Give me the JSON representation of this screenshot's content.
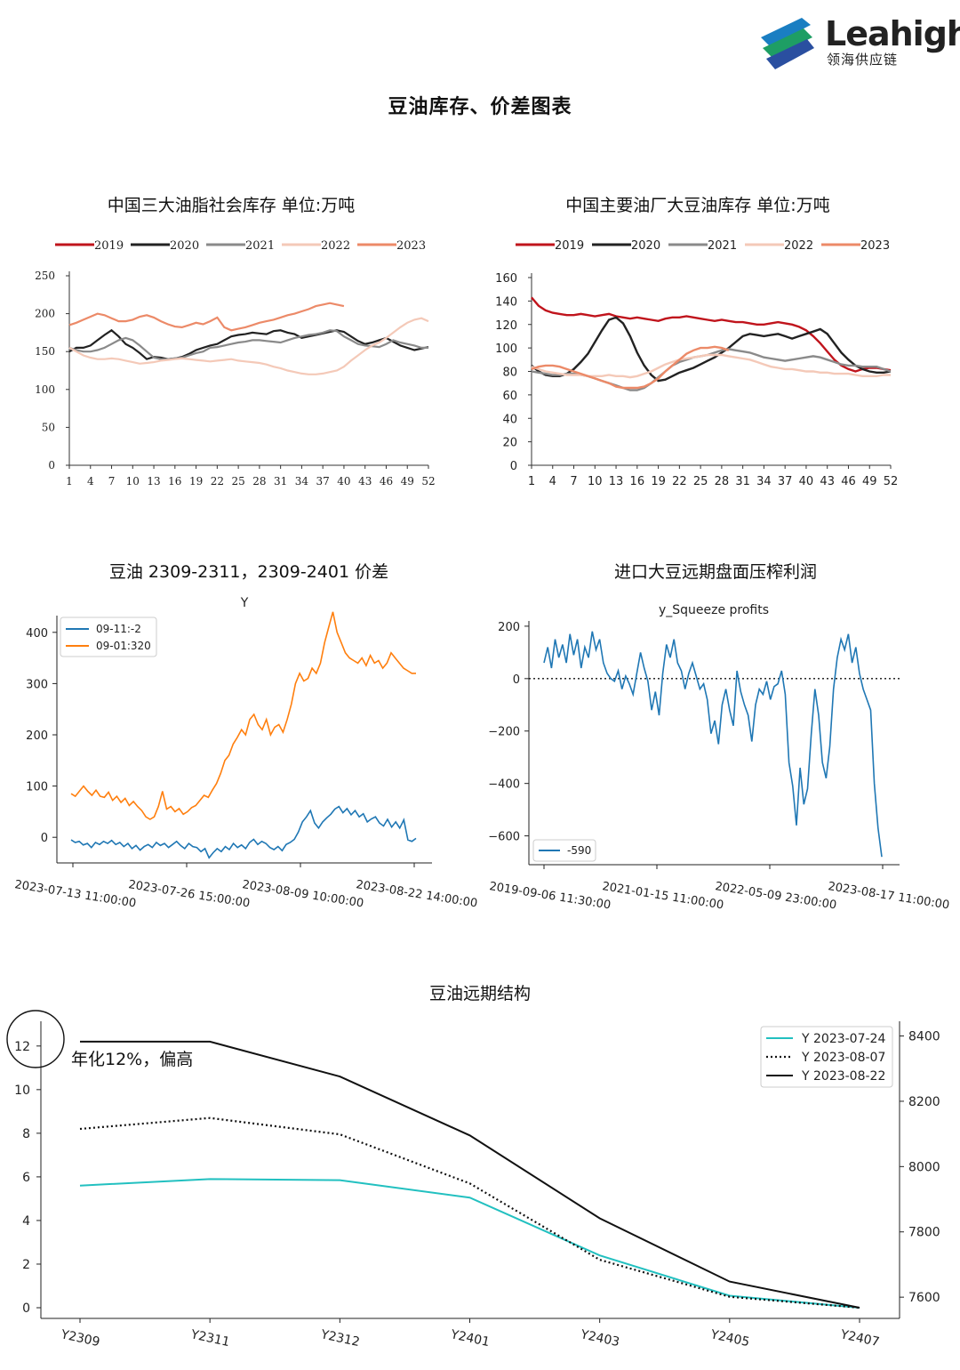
{
  "header": {
    "brand": "Leahigh",
    "brand_cn": "领海供应链",
    "page_title": "豆油库存、价差图表"
  },
  "colors": {
    "y2019": "#c0141c",
    "y2020": "#222222",
    "y2021": "#8a8a8a",
    "y2022": "#f4c9b8",
    "y2023": "#ec8a68",
    "mpl_blue": "#1f77b4",
    "mpl_orange": "#ff7f0e",
    "teal": "#22c0c0"
  },
  "chart_data": [
    {
      "id": "c1",
      "type": "line",
      "title": "中国三大油脂社会库存  单位:万吨",
      "legend_position": "top",
      "x_ticks": [
        "1",
        "4",
        "7",
        "10",
        "13",
        "16",
        "19",
        "22",
        "25",
        "28",
        "31",
        "34",
        "37",
        "40",
        "43",
        "46",
        "49",
        "52"
      ],
      "xlim": [
        1,
        52
      ],
      "y_ticks": [
        "0",
        "50",
        "100",
        "150",
        "200",
        "250"
      ],
      "ylim": [
        0,
        250
      ],
      "series": [
        {
          "name": "2019",
          "values": []
        },
        {
          "name": "2020",
          "values": [
            150,
            155,
            155,
            158,
            165,
            172,
            178,
            170,
            160,
            155,
            148,
            140,
            143,
            142,
            140,
            141,
            143,
            147,
            152,
            155,
            158,
            160,
            165,
            170,
            172,
            173,
            175,
            174,
            173,
            177,
            178,
            175,
            173,
            168,
            170,
            172,
            174,
            176,
            178,
            176,
            170,
            164,
            160,
            162,
            165,
            168,
            163,
            158,
            155,
            152,
            154,
            156
          ]
        },
        {
          "name": "2021",
          "values": [
            155,
            152,
            150,
            150,
            152,
            155,
            160,
            165,
            168,
            165,
            158,
            150,
            142,
            140,
            140,
            141,
            142,
            145,
            148,
            150,
            155,
            156,
            158,
            160,
            162,
            163,
            165,
            165,
            164,
            163,
            162,
            165,
            168,
            170,
            172,
            173,
            175,
            178,
            177,
            170,
            165,
            160,
            158,
            157,
            156,
            160,
            165,
            162,
            160,
            158,
            155,
            155
          ]
        },
        {
          "name": "2022",
          "values": [
            155,
            150,
            145,
            142,
            140,
            140,
            141,
            140,
            138,
            136,
            134,
            135,
            136,
            138,
            139,
            140,
            141,
            140,
            139,
            138,
            137,
            138,
            139,
            140,
            138,
            137,
            136,
            135,
            133,
            130,
            128,
            125,
            123,
            121,
            120,
            120,
            121,
            123,
            125,
            130,
            138,
            145,
            152,
            158,
            162,
            168,
            175,
            182,
            188,
            192,
            194,
            190
          ]
        },
        {
          "name": "2023",
          "values": [
            185,
            188,
            192,
            196,
            200,
            198,
            194,
            190,
            190,
            192,
            196,
            198,
            195,
            190,
            186,
            183,
            182,
            185,
            188,
            186,
            190,
            195,
            182,
            178,
            180,
            182,
            185,
            188,
            190,
            192,
            195,
            198,
            200,
            203,
            206,
            210,
            212,
            214,
            212,
            210
          ]
        }
      ]
    },
    {
      "id": "c2",
      "type": "line",
      "title": "中国主要油厂大豆油库存  单位:万吨",
      "legend_position": "top",
      "x_ticks": [
        "1",
        "4",
        "7",
        "10",
        "13",
        "16",
        "19",
        "22",
        "25",
        "28",
        "31",
        "34",
        "37",
        "40",
        "43",
        "46",
        "49",
        "52"
      ],
      "xlim": [
        1,
        52
      ],
      "y_ticks": [
        "0",
        "20",
        "40",
        "60",
        "80",
        "100",
        "120",
        "140",
        "160"
      ],
      "ylim": [
        0,
        160
      ],
      "series": [
        {
          "name": "2019",
          "values": [
            143,
            136,
            132,
            130,
            129,
            128,
            128,
            129,
            128,
            127,
            128,
            129,
            127,
            126,
            125,
            126,
            125,
            124,
            123,
            125,
            126,
            126,
            127,
            126,
            125,
            124,
            123,
            124,
            123,
            122,
            122,
            121,
            120,
            120,
            121,
            122,
            121,
            120,
            118,
            115,
            110,
            104,
            97,
            90,
            85,
            82,
            80,
            82,
            83,
            83,
            82,
            81
          ]
        },
        {
          "name": "2020",
          "values": [
            85,
            80,
            77,
            76,
            76,
            78,
            82,
            88,
            95,
            105,
            115,
            124,
            126,
            121,
            110,
            96,
            85,
            77,
            72,
            73,
            76,
            79,
            81,
            83,
            86,
            89,
            92,
            96,
            100,
            105,
            110,
            112,
            111,
            110,
            111,
            112,
            110,
            108,
            110,
            112,
            114,
            116,
            112,
            104,
            96,
            90,
            85,
            82,
            80,
            79,
            79,
            80
          ]
        },
        {
          "name": "2021",
          "values": [
            80,
            79,
            78,
            77,
            77,
            78,
            78,
            77,
            76,
            74,
            72,
            70,
            68,
            66,
            64,
            64,
            66,
            70,
            75,
            80,
            85,
            88,
            90,
            92,
            93,
            94,
            96,
            98,
            99,
            98,
            97,
            96,
            94,
            92,
            91,
            90,
            89,
            90,
            91,
            92,
            93,
            92,
            90,
            88,
            86,
            85,
            85,
            84,
            84,
            84,
            82,
            80
          ]
        },
        {
          "name": "2022",
          "values": [
            84,
            82,
            80,
            79,
            78,
            77,
            77,
            77,
            76,
            76,
            76,
            77,
            76,
            76,
            75,
            76,
            78,
            80,
            83,
            86,
            88,
            90,
            91,
            92,
            93,
            94,
            94,
            94,
            93,
            92,
            91,
            90,
            88,
            86,
            84,
            83,
            82,
            82,
            81,
            80,
            80,
            79,
            79,
            78,
            78,
            78,
            77,
            76,
            76,
            76,
            77,
            77
          ]
        },
        {
          "name": "2023",
          "values": [
            82,
            84,
            85,
            85,
            84,
            82,
            80,
            78,
            76,
            74,
            72,
            70,
            67,
            66,
            66,
            66,
            67,
            70,
            74,
            80,
            85,
            90,
            95,
            98,
            100,
            100,
            101,
            100,
            98
          ]
        }
      ]
    },
    {
      "id": "c3",
      "type": "line",
      "title": "豆油 2309-2311，2309-2401 价差",
      "subtitle": "Y",
      "legend_position": "top-left",
      "x_ticks": [
        "2023-07-13 11:00:00",
        "2023-07-26 15:00:00",
        "2023-08-09 10:00:00",
        "2023-08-22 14:00:00"
      ],
      "y_ticks": [
        "0",
        "100",
        "200",
        "300",
        "400"
      ],
      "ylim": [
        -50,
        450
      ],
      "series": [
        {
          "name": "09-11:-2",
          "values": [
            -5,
            -10,
            -8,
            -15,
            -12,
            -20,
            -10,
            -14,
            -8,
            -12,
            -6,
            -14,
            -10,
            -18,
            -12,
            -22,
            -16,
            -25,
            -18,
            -14,
            -20,
            -10,
            -16,
            -12,
            -20,
            -14,
            -8,
            -16,
            -22,
            -12,
            -18,
            -20,
            -28,
            -22,
            -40,
            -30,
            -22,
            -28,
            -18,
            -24,
            -12,
            -20,
            -15,
            -22,
            -10,
            -4,
            -14,
            -8,
            -12,
            -20,
            -24,
            -18,
            -26,
            -14,
            -10,
            -4,
            10,
            30,
            40,
            52,
            28,
            18,
            30,
            38,
            45,
            55,
            60,
            48,
            56,
            44,
            52,
            40,
            46,
            30,
            36,
            40,
            28,
            22,
            35,
            20,
            30,
            18,
            34,
            -5,
            -8,
            -2
          ]
        },
        {
          "name": "09-01:320",
          "values": [
            85,
            80,
            90,
            100,
            90,
            82,
            92,
            80,
            78,
            88,
            72,
            80,
            68,
            76,
            62,
            70,
            60,
            52,
            40,
            35,
            40,
            60,
            90,
            55,
            60,
            50,
            56,
            45,
            50,
            58,
            62,
            72,
            82,
            78,
            92,
            105,
            125,
            150,
            160,
            182,
            195,
            210,
            200,
            230,
            240,
            220,
            210,
            230,
            200,
            215,
            220,
            205,
            230,
            260,
            300,
            320,
            305,
            310,
            330,
            320,
            340,
            380,
            410,
            440,
            400,
            380,
            360,
            350,
            345,
            340,
            350,
            335,
            355,
            340,
            345,
            330,
            340,
            360,
            350,
            340,
            330,
            325,
            320,
            320
          ]
        }
      ]
    },
    {
      "id": "c4",
      "type": "line",
      "title": "进口大豆远期盘面压榨利润",
      "subtitle": "y_Squeeze profits",
      "legend_position": "bottom-left",
      "x_ticks": [
        "2019-09-06 11:30:00",
        "2021-01-15 11:00:00",
        "2022-05-09 23:00:00",
        "2023-08-17 11:00:00"
      ],
      "y_ticks": [
        "−600",
        "−400",
        "−200",
        "0",
        "200"
      ],
      "ylim": [
        -710,
        220
      ],
      "reference_line": 0,
      "series": [
        {
          "name": "-590",
          "values": [
            60,
            120,
            40,
            150,
            80,
            130,
            60,
            170,
            90,
            150,
            40,
            120,
            80,
            180,
            110,
            150,
            60,
            20,
            0,
            -10,
            30,
            -40,
            10,
            -20,
            -60,
            20,
            100,
            40,
            -10,
            -120,
            -50,
            -140,
            20,
            130,
            80,
            150,
            60,
            30,
            -40,
            20,
            60,
            10,
            -40,
            -20,
            -80,
            -210,
            -160,
            -250,
            -100,
            -40,
            -120,
            -180,
            30,
            -50,
            -100,
            -140,
            -240,
            -100,
            -40,
            -60,
            -10,
            -80,
            -30,
            -20,
            30,
            -60,
            -320,
            -410,
            -560,
            -340,
            -480,
            -420,
            -210,
            -40,
            -140,
            -320,
            -380,
            -260,
            -40,
            80,
            150,
            110,
            170,
            60,
            120,
            20,
            -40,
            -80,
            -120,
            -400,
            -570,
            -680
          ]
        }
      ]
    },
    {
      "id": "c5",
      "type": "line",
      "title": "豆油远期结构",
      "legend_position": "top-right",
      "annotation": "年化12%，偏高",
      "categories": [
        "Y2309",
        "Y2311",
        "Y2312",
        "Y2401",
        "Y2403",
        "Y2405",
        "Y2407"
      ],
      "left_y_ticks": [
        "0",
        "2",
        "4",
        "6",
        "8",
        "10",
        "12"
      ],
      "left_ylim": [
        0,
        12.4
      ],
      "right_y_ticks": [
        "7600",
        "7800",
        "8000",
        "8200",
        "8400"
      ],
      "right_ylim": [
        7535,
        8445
      ],
      "series": [
        {
          "name": "Y 2023-07-24",
          "axis": "left",
          "values": [
            5.6,
            5.9,
            5.85,
            5.05,
            2.4,
            0.55,
            0.0
          ]
        },
        {
          "name": "Y 2023-08-07",
          "axis": "left",
          "values": [
            8.2,
            8.7,
            7.95,
            5.7,
            2.2,
            0.5,
            0.0
          ]
        },
        {
          "name": "Y 2023-08-22",
          "axis": "left",
          "values": [
            12.2,
            12.2,
            10.6,
            7.9,
            4.1,
            1.2,
            0.0
          ]
        }
      ]
    }
  ]
}
